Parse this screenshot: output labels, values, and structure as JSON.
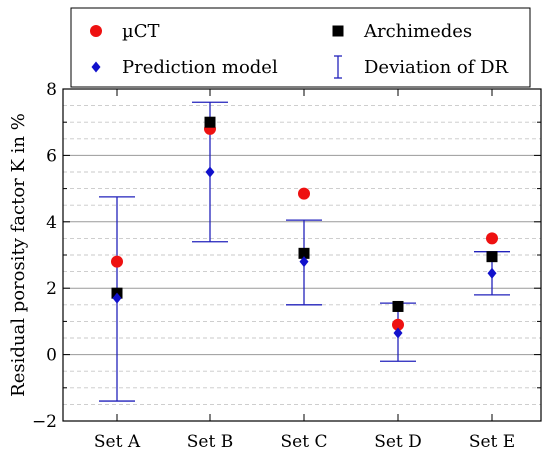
{
  "chart_data": {
    "type": "scatter",
    "ylabel": "Residual porosity factor K in %",
    "categories": [
      "Set A",
      "Set B",
      "Set C",
      "Set D",
      "Set E"
    ],
    "ylim": [
      -2,
      8
    ],
    "yticks": [
      -2,
      0,
      2,
      4,
      6,
      8
    ],
    "grid": {
      "major": true,
      "minor": true,
      "minor_step": 0.5
    },
    "legend_placement": "top",
    "series": [
      {
        "name": "µCT",
        "marker": "circle",
        "color": "#ee1111",
        "values": [
          2.8,
          6.8,
          4.85,
          0.9,
          3.5
        ]
      },
      {
        "name": "Archimedes",
        "marker": "square",
        "color": "#000000",
        "values": [
          1.85,
          7.0,
          3.05,
          1.45,
          2.95
        ]
      },
      {
        "name": "Prediction model",
        "marker": "diamond",
        "color": "#1111cc",
        "values": [
          1.7,
          5.5,
          2.8,
          0.65,
          2.45
        ]
      }
    ],
    "error_bars": {
      "name": "Deviation of DR",
      "color": "#2222bb",
      "ranges": [
        [
          -1.4,
          4.75
        ],
        [
          3.4,
          7.6
        ],
        [
          1.5,
          4.05
        ],
        [
          -0.2,
          1.55
        ],
        [
          1.8,
          3.1
        ]
      ]
    }
  }
}
